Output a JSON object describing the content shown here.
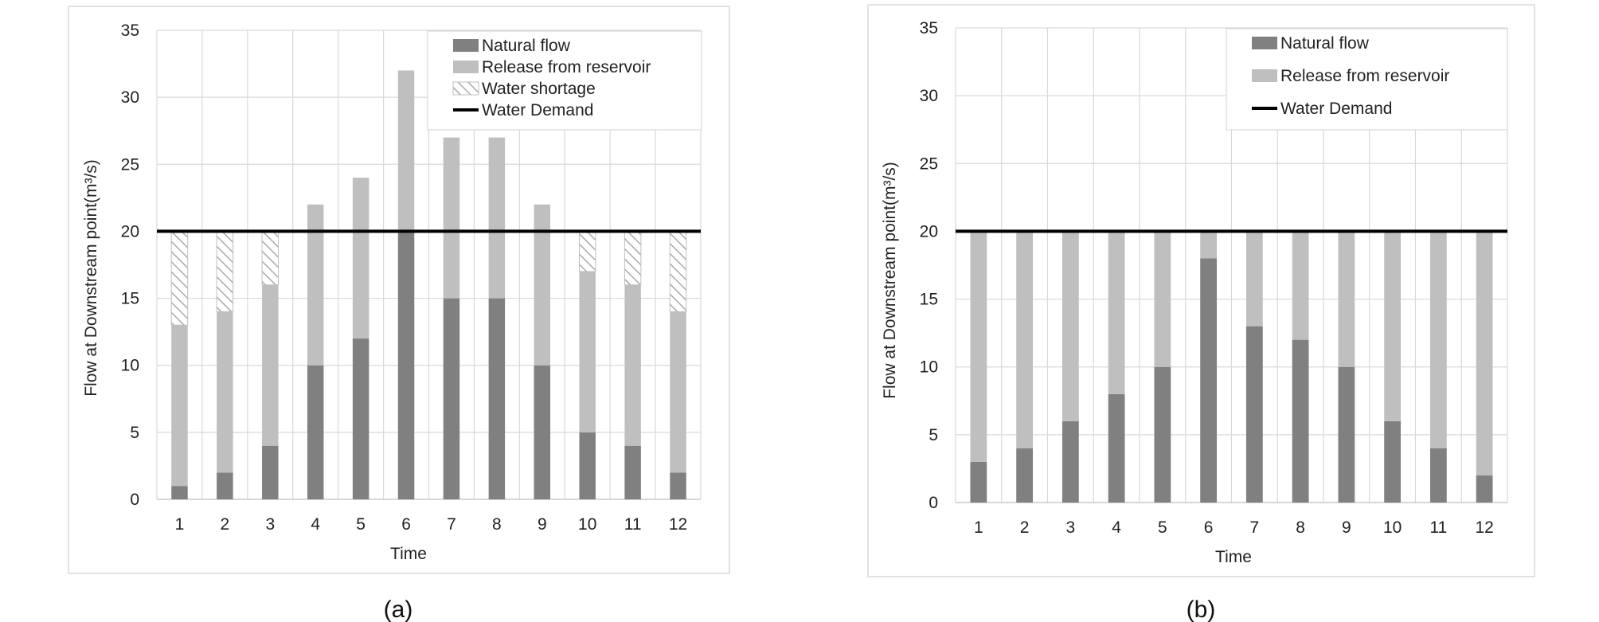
{
  "charts": [
    {
      "panel_label": "(a)",
      "chart_data": {
        "type": "bar",
        "stacked": true,
        "categories": [
          "1",
          "2",
          "3",
          "4",
          "5",
          "6",
          "7",
          "8",
          "9",
          "10",
          "11",
          "12"
        ],
        "series": [
          {
            "name": "Natural flow",
            "values": [
              1,
              2,
              4,
              10,
              12,
              20,
              15,
              15,
              10,
              5,
              4,
              2
            ],
            "color": "#808080"
          },
          {
            "name": "Release from reservoir",
            "values": [
              12,
              12,
              12,
              12,
              12,
              12,
              12,
              12,
              12,
              12,
              12,
              12
            ],
            "color": "#bfbfbf"
          },
          {
            "name": "Water shortage",
            "values": [
              7,
              6,
              4,
              0,
              0,
              0,
              0,
              0,
              0,
              3,
              4,
              6
            ],
            "color": "#ffffff",
            "pattern": "hatch"
          }
        ],
        "lines": [
          {
            "name": "Water Demand",
            "value": 20,
            "color": "#000000"
          }
        ],
        "xlabel": "Time",
        "ylabel": "Flow at Downstream point(m³/s)",
        "ylim": [
          0,
          35
        ],
        "yticks": [
          "0",
          "5",
          "10",
          "15",
          "20",
          "25",
          "30",
          "35"
        ],
        "grid": true,
        "legend_position": "top-right",
        "legend": [
          "Natural flow",
          "Release from reservoir",
          "Water shortage",
          "Water Demand"
        ]
      }
    },
    {
      "panel_label": "(b)",
      "chart_data": {
        "type": "bar",
        "stacked": true,
        "categories": [
          "1",
          "2",
          "3",
          "4",
          "5",
          "6",
          "7",
          "8",
          "9",
          "10",
          "11",
          "12"
        ],
        "series": [
          {
            "name": "Natural flow",
            "values": [
              3,
              4,
              6,
              8,
              10,
              18,
              13,
              12,
              10,
              6,
              4,
              2
            ],
            "color": "#808080"
          },
          {
            "name": "Release from reservoir",
            "values": [
              17,
              16,
              14,
              12,
              10,
              2,
              7,
              8,
              10,
              14,
              16,
              18
            ],
            "color": "#bfbfbf"
          }
        ],
        "lines": [
          {
            "name": "Water Demand",
            "value": 20,
            "color": "#000000"
          }
        ],
        "xlabel": "Time",
        "ylabel": "Flow at Downstream point(m³/s)",
        "ylim": [
          0,
          35
        ],
        "yticks": [
          "0",
          "5",
          "10",
          "15",
          "20",
          "25",
          "30",
          "35"
        ],
        "grid": true,
        "legend_position": "top-right",
        "legend": [
          "Natural flow",
          "Release from reservoir",
          "Water Demand"
        ]
      }
    }
  ]
}
